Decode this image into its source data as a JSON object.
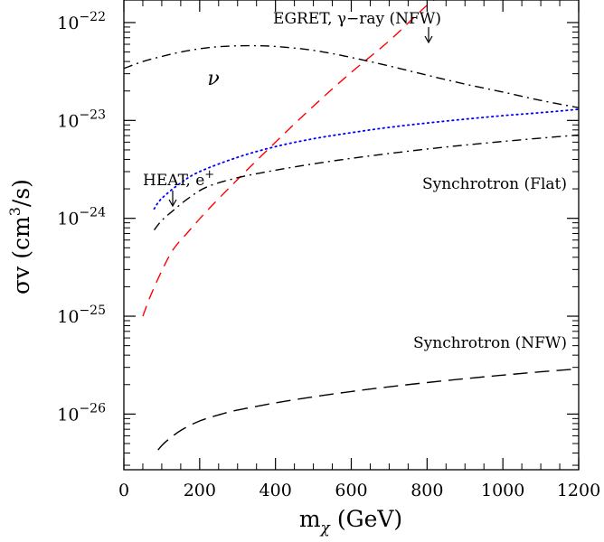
{
  "chart_data": {
    "type": "line",
    "x_axis": {
      "label_main": "m",
      "label_sub": "χ",
      "label_unit": "(GeV)",
      "range": [
        0,
        1200
      ],
      "ticks": [
        0,
        200,
        400,
        600,
        800,
        1000,
        1200
      ],
      "tick_labels": [
        "0",
        "200",
        "400",
        "600",
        "800",
        "1000",
        "1200"
      ]
    },
    "y_axis": {
      "label_sigma": "σv",
      "label_unit_open": "(cm",
      "label_unit_sup": "3",
      "label_unit_close": "/s)",
      "scale": "log",
      "range": [
        2.7e-27,
        1.7e-22
      ],
      "ticks": [
        1e-26,
        1e-25,
        1e-24,
        1e-23,
        1e-22
      ],
      "tick_base": "10",
      "tick_exponents": [
        "−26",
        "−25",
        "−24",
        "−23",
        "−22"
      ]
    },
    "series": [
      {
        "key": "egret",
        "color": "#ff0000",
        "style": "dashed",
        "points": [
          [
            50,
            1e-25
          ],
          [
            70,
            1.6e-25
          ],
          [
            100,
            2.9e-25
          ],
          [
            130,
            4.8e-25
          ],
          [
            170,
            7.3e-25
          ],
          [
            220,
            1.2e-24
          ],
          [
            300,
            2.5e-24
          ],
          [
            400,
            6e-24
          ],
          [
            500,
            1.4e-23
          ],
          [
            600,
            3.1e-23
          ],
          [
            700,
            6.5e-23
          ],
          [
            800,
            1.5e-22
          ],
          [
            850,
            2e-22
          ]
        ]
      },
      {
        "key": "nu",
        "color": "#000000",
        "style": "dashdot",
        "points": [
          [
            0,
            3.4e-23
          ],
          [
            50,
            4e-23
          ],
          [
            100,
            4.5e-23
          ],
          [
            150,
            5e-23
          ],
          [
            200,
            5.4e-23
          ],
          [
            260,
            5.7e-23
          ],
          [
            330,
            5.8e-23
          ],
          [
            400,
            5.7e-23
          ],
          [
            500,
            5.2e-23
          ],
          [
            600,
            4.4e-23
          ],
          [
            700,
            3.6e-23
          ],
          [
            800,
            2.9e-23
          ],
          [
            900,
            2.35e-23
          ],
          [
            1000,
            1.95e-23
          ],
          [
            1100,
            1.6e-23
          ],
          [
            1200,
            1.35e-23
          ]
        ]
      },
      {
        "key": "heat",
        "color": "#0000ff",
        "style": "dotted",
        "points": [
          [
            80,
            1.25e-24
          ],
          [
            100,
            1.6e-24
          ],
          [
            150,
            2.3e-24
          ],
          [
            200,
            3e-24
          ],
          [
            300,
            4.2e-24
          ],
          [
            400,
            5.4e-24
          ],
          [
            500,
            6.5e-24
          ],
          [
            600,
            7.5e-24
          ],
          [
            700,
            8.5e-24
          ],
          [
            800,
            9.4e-24
          ],
          [
            900,
            1.03e-23
          ],
          [
            1000,
            1.12e-23
          ],
          [
            1100,
            1.2e-23
          ],
          [
            1200,
            1.3e-23
          ]
        ]
      },
      {
        "key": "sync_flat",
        "color": "#000000",
        "style": "dashdot",
        "points": [
          [
            80,
            7.6e-25
          ],
          [
            100,
            9.5e-25
          ],
          [
            130,
            1.2e-24
          ],
          [
            170,
            1.6e-24
          ],
          [
            220,
            2.1e-24
          ],
          [
            300,
            2.6e-24
          ],
          [
            400,
            3.1e-24
          ],
          [
            500,
            3.6e-24
          ],
          [
            600,
            4.1e-24
          ],
          [
            700,
            4.6e-24
          ],
          [
            800,
            5.1e-24
          ],
          [
            900,
            5.6e-24
          ],
          [
            1000,
            6.1e-24
          ],
          [
            1100,
            6.6e-24
          ],
          [
            1200,
            7.1e-24
          ]
        ]
      },
      {
        "key": "sync_nfw",
        "color": "#000000",
        "style": "longdash",
        "points": [
          [
            90,
            4.3e-27
          ],
          [
            110,
            5.2e-27
          ],
          [
            150,
            6.8e-27
          ],
          [
            200,
            8.5e-27
          ],
          [
            250,
            9.8e-27
          ],
          [
            300,
            1.1e-26
          ],
          [
            400,
            1.3e-26
          ],
          [
            500,
            1.5e-26
          ],
          [
            600,
            1.7e-26
          ],
          [
            700,
            1.9e-26
          ],
          [
            800,
            2.1e-26
          ],
          [
            900,
            2.3e-26
          ],
          [
            1000,
            2.5e-26
          ],
          [
            1100,
            2.7e-26
          ],
          [
            1200,
            2.9e-26
          ]
        ]
      }
    ],
    "annotations": {
      "egret": "EGRET, γ−ray (NFW)",
      "nu": "ν",
      "heat_main": "HEAT, e",
      "heat_sup": "+",
      "sync_flat": "Synchrotron (Flat)",
      "sync_nfw": "Synchrotron (NFW)"
    }
  }
}
